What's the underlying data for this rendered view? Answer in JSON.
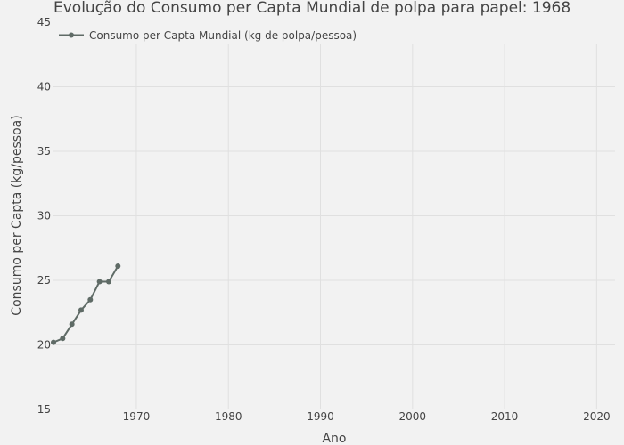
{
  "chart_data": {
    "type": "line",
    "title": "Evolução do Consumo per Capta Mundial de polpa para papel: 1968",
    "xlabel": "Ano",
    "ylabel": "Consumo per Capta (kg/pessoa)",
    "xlim": [
      1961,
      2022
    ],
    "ylim": [
      15,
      45
    ],
    "x_ticks": [
      1970,
      1980,
      1990,
      2000,
      2010,
      2020
    ],
    "y_ticks": [
      15,
      20,
      25,
      30,
      35,
      40,
      45
    ],
    "grid": true,
    "legend_position": "top-left",
    "series": [
      {
        "name": "Consumo per Capta Mundial (kg de polpa/pessoa)",
        "color": "#5f6b66",
        "x": [
          1961,
          1962,
          1963,
          1964,
          1965,
          1966,
          1967,
          1968
        ],
        "y": [
          20.2,
          20.5,
          21.6,
          22.7,
          23.5,
          24.9,
          24.9,
          26.1
        ]
      }
    ]
  }
}
